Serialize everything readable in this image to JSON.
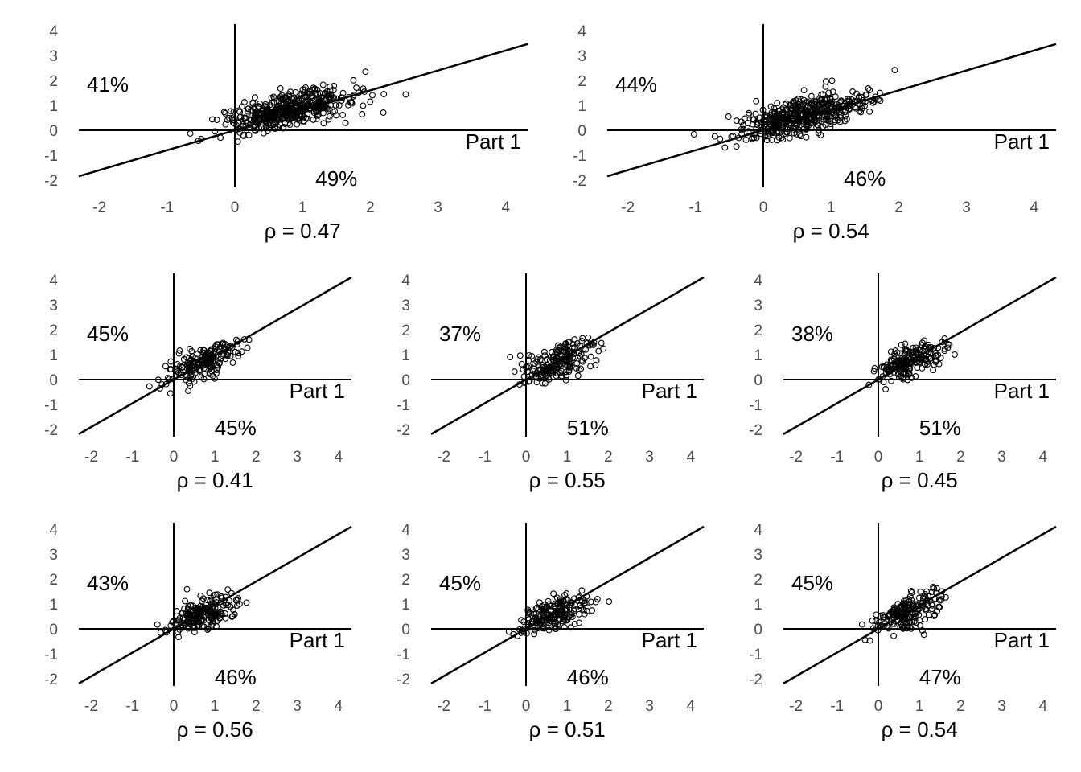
{
  "chart_data": [
    {
      "type": "scatter",
      "x_label": "Part 1",
      "upper_left_pct": "41%",
      "lower_right_pct": "49%",
      "rho_label": "ρ = 0.47",
      "xlim": [
        -2,
        4
      ],
      "ylim": [
        -2,
        4
      ],
      "x_ticks": [
        "-2",
        "-1",
        "0",
        "1",
        "2",
        "3",
        "4"
      ],
      "y_ticks": [
        "4",
        "3",
        "2",
        "1",
        "0",
        "-1",
        "-2"
      ],
      "reference_line": {
        "intercept": 0,
        "slope": 0.8
      },
      "seed": 1,
      "n_points": 480,
      "center": [
        0.8,
        0.8
      ],
      "spread": [
        0.45,
        0.45
      ]
    },
    {
      "type": "scatter",
      "x_label": "Part 1",
      "upper_left_pct": "44%",
      "lower_right_pct": "46%",
      "rho_label": "ρ = 0.54",
      "xlim": [
        -2,
        4
      ],
      "ylim": [
        -2,
        4
      ],
      "x_ticks": [
        "-2",
        "-1",
        "0",
        "1",
        "2",
        "3",
        "4"
      ],
      "y_ticks": [
        "4",
        "3",
        "2",
        "1",
        "0",
        "-1",
        "-2"
      ],
      "reference_line": {
        "intercept": 0,
        "slope": 0.8
      },
      "seed": 2,
      "n_points": 480,
      "center": [
        0.6,
        0.6
      ],
      "spread": [
        0.45,
        0.45
      ]
    },
    {
      "type": "scatter",
      "x_label": "Part 1",
      "upper_left_pct": "45%",
      "lower_right_pct": "45%",
      "rho_label": "ρ = 0.41",
      "xlim": [
        -2,
        4
      ],
      "ylim": [
        -2,
        4
      ],
      "x_ticks": [
        "-2",
        "-1",
        "0",
        "1",
        "2",
        "3",
        "4"
      ],
      "y_ticks": [
        "4",
        "3",
        "2",
        "1",
        "0",
        "-1",
        "-2"
      ],
      "reference_line": {
        "intercept": 0,
        "slope": 0.95
      },
      "seed": 3,
      "n_points": 200,
      "center": [
        0.75,
        0.75
      ],
      "spread": [
        0.45,
        0.45
      ]
    },
    {
      "type": "scatter",
      "x_label": "Part 1",
      "upper_left_pct": "37%",
      "lower_right_pct": "51%",
      "rho_label": "ρ = 0.55",
      "xlim": [
        -2,
        4
      ],
      "ylim": [
        -2,
        4
      ],
      "x_ticks": [
        "-2",
        "-1",
        "0",
        "1",
        "2",
        "3",
        "4"
      ],
      "y_ticks": [
        "4",
        "3",
        "2",
        "1",
        "0",
        "-1",
        "-2"
      ],
      "reference_line": {
        "intercept": 0,
        "slope": 0.95
      },
      "seed": 4,
      "n_points": 200,
      "center": [
        0.75,
        0.7
      ],
      "spread": [
        0.45,
        0.45
      ]
    },
    {
      "type": "scatter",
      "x_label": "Part 1",
      "upper_left_pct": "38%",
      "lower_right_pct": "51%",
      "rho_label": "ρ = 0.45",
      "xlim": [
        -2,
        4
      ],
      "ylim": [
        -2,
        4
      ],
      "x_ticks": [
        "-2",
        "-1",
        "0",
        "1",
        "2",
        "3",
        "4"
      ],
      "y_ticks": [
        "4",
        "3",
        "2",
        "1",
        "0",
        "-1",
        "-2"
      ],
      "reference_line": {
        "intercept": 0,
        "slope": 0.95
      },
      "seed": 5,
      "n_points": 200,
      "center": [
        0.75,
        0.7
      ],
      "spread": [
        0.4,
        0.4
      ]
    },
    {
      "type": "scatter",
      "x_label": "Part 1",
      "upper_left_pct": "43%",
      "lower_right_pct": "46%",
      "rho_label": "ρ = 0.56",
      "xlim": [
        -2,
        4
      ],
      "ylim": [
        -2,
        4
      ],
      "x_ticks": [
        "-2",
        "-1",
        "0",
        "1",
        "2",
        "3",
        "4"
      ],
      "y_ticks": [
        "4",
        "3",
        "2",
        "1",
        "0",
        "-1",
        "-2"
      ],
      "reference_line": {
        "intercept": 0,
        "slope": 0.95
      },
      "seed": 6,
      "n_points": 200,
      "center": [
        0.7,
        0.6
      ],
      "spread": [
        0.4,
        0.4
      ]
    },
    {
      "type": "scatter",
      "x_label": "Part 1",
      "upper_left_pct": "45%",
      "lower_right_pct": "46%",
      "rho_label": "ρ = 0.51",
      "xlim": [
        -2,
        4
      ],
      "ylim": [
        -2,
        4
      ],
      "x_ticks": [
        "-2",
        "-1",
        "0",
        "1",
        "2",
        "3",
        "4"
      ],
      "y_ticks": [
        "4",
        "3",
        "2",
        "1",
        "0",
        "-1",
        "-2"
      ],
      "reference_line": {
        "intercept": 0,
        "slope": 0.95
      },
      "seed": 7,
      "n_points": 200,
      "center": [
        0.7,
        0.6
      ],
      "spread": [
        0.45,
        0.4
      ]
    },
    {
      "type": "scatter",
      "x_label": "Part 1",
      "upper_left_pct": "45%",
      "lower_right_pct": "47%",
      "rho_label": "ρ = 0.54",
      "xlim": [
        -2,
        4
      ],
      "ylim": [
        -2,
        4
      ],
      "x_ticks": [
        "-2",
        "-1",
        "0",
        "1",
        "2",
        "3",
        "4"
      ],
      "y_ticks": [
        "4",
        "3",
        "2",
        "1",
        "0",
        "-1",
        "-2"
      ],
      "reference_line": {
        "intercept": 0,
        "slope": 0.95
      },
      "seed": 8,
      "n_points": 200,
      "center": [
        0.7,
        0.65
      ],
      "spread": [
        0.4,
        0.4
      ]
    }
  ]
}
